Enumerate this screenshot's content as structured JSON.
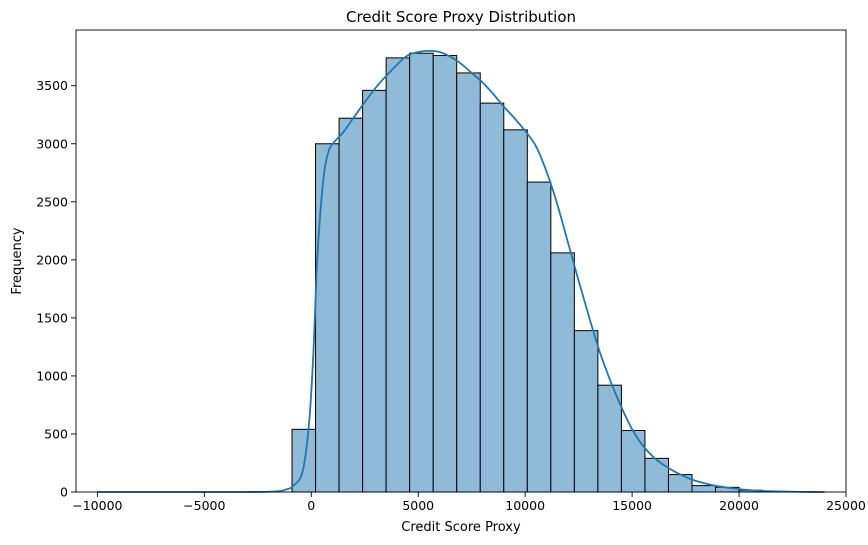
{
  "chart_data": {
    "type": "histogram",
    "title": "Credit Score Proxy Distribution",
    "xlabel": "Credit Score Proxy",
    "ylabel": "Frequency",
    "xlim": [
      -11000,
      25000
    ],
    "ylim": [
      0,
      3980
    ],
    "xticks": [
      -10000,
      -5000,
      0,
      5000,
      10000,
      15000,
      20000,
      25000
    ],
    "xtick_labels": [
      "−10000",
      "−5000",
      "0",
      "5000",
      "10000",
      "15000",
      "20000",
      "25000"
    ],
    "yticks": [
      0,
      500,
      1000,
      1500,
      2000,
      2500,
      3000,
      3500
    ],
    "ytick_labels": [
      "0",
      "500",
      "1000",
      "1500",
      "2000",
      "2500",
      "3000",
      "3500"
    ],
    "bins": [
      {
        "x0": -900,
        "x1": 200,
        "value": 540
      },
      {
        "x0": 200,
        "x1": 1300,
        "value": 3000
      },
      {
        "x0": 1300,
        "x1": 2400,
        "value": 3220
      },
      {
        "x0": 2400,
        "x1": 3500,
        "value": 3460
      },
      {
        "x0": 3500,
        "x1": 4600,
        "value": 3740
      },
      {
        "x0": 4600,
        "x1": 5700,
        "value": 3780
      },
      {
        "x0": 5700,
        "x1": 6800,
        "value": 3760
      },
      {
        "x0": 6800,
        "x1": 7900,
        "value": 3610
      },
      {
        "x0": 7900,
        "x1": 9000,
        "value": 3350
      },
      {
        "x0": 9000,
        "x1": 10100,
        "value": 3120
      },
      {
        "x0": 10100,
        "x1": 11200,
        "value": 2670
      },
      {
        "x0": 11200,
        "x1": 12300,
        "value": 2060
      },
      {
        "x0": 12300,
        "x1": 13400,
        "value": 1390
      },
      {
        "x0": 13400,
        "x1": 14500,
        "value": 920
      },
      {
        "x0": 14500,
        "x1": 15600,
        "value": 530
      },
      {
        "x0": 15600,
        "x1": 16700,
        "value": 290
      },
      {
        "x0": 16700,
        "x1": 17800,
        "value": 150
      },
      {
        "x0": 17800,
        "x1": 18900,
        "value": 55
      },
      {
        "x0": 18900,
        "x1": 20000,
        "value": 40
      },
      {
        "x0": 20000,
        "x1": 21100,
        "value": 15
      },
      {
        "x0": 21100,
        "x1": 22200,
        "value": 5
      }
    ],
    "kde": {
      "x": [
        -10000,
        -5000,
        -2000,
        -1200,
        -800,
        -400,
        -100,
        100,
        250,
        400,
        600,
        800,
        1000,
        1500,
        2000,
        3000,
        4000,
        4500,
        5000,
        5500,
        6000,
        6500,
        7000,
        7500,
        8000,
        8500,
        9000,
        9500,
        10000,
        10500,
        11000,
        11500,
        12000,
        12500,
        13000,
        13500,
        14000,
        14500,
        15000,
        15500,
        16000,
        16500,
        17000,
        17500,
        18000,
        19000,
        20000,
        21000,
        22000,
        23000,
        24000
      ],
      "y": [
        0,
        0,
        2,
        20,
        60,
        180,
        600,
        1200,
        1900,
        2350,
        2750,
        2930,
        3000,
        3100,
        3230,
        3480,
        3680,
        3760,
        3790,
        3800,
        3790,
        3750,
        3690,
        3610,
        3530,
        3430,
        3320,
        3220,
        3110,
        2980,
        2760,
        2480,
        2150,
        1820,
        1500,
        1200,
        950,
        730,
        540,
        400,
        300,
        230,
        175,
        130,
        95,
        50,
        25,
        10,
        4,
        1,
        0
      ]
    },
    "colors": {
      "bar_fill": "#8fbbd9",
      "bar_edge": "#000000",
      "kde_line": "#1f77b4"
    },
    "grid": false,
    "legend": "none"
  }
}
